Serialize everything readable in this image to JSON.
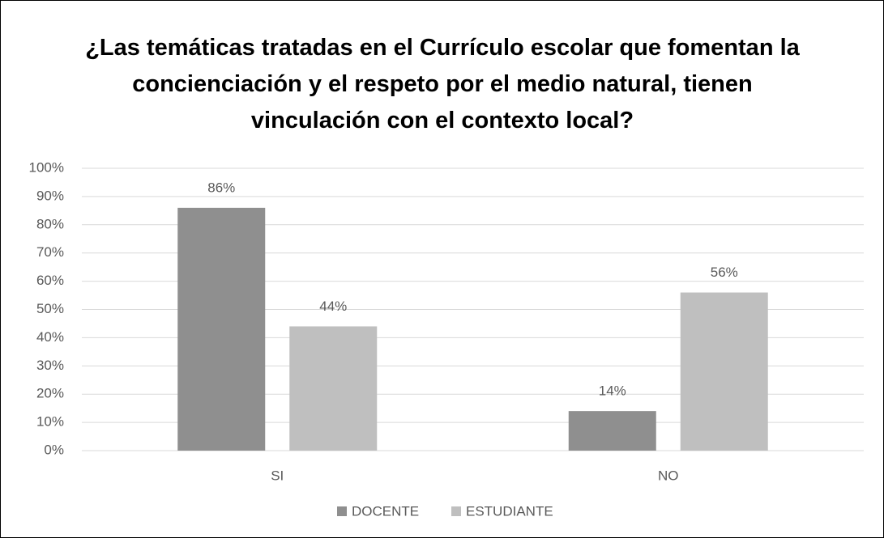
{
  "chart_data": {
    "type": "bar",
    "title": "¿Las temáticas tratadas en el Currículo escolar que fomentan la concienciación y el respeto por el medio natural, tienen vinculación con el contexto local?",
    "categories": [
      "SI",
      "NO"
    ],
    "series": [
      {
        "name": "DOCENTE",
        "color": "#8f8f8f",
        "values": [
          86,
          14
        ],
        "value_labels": [
          "86%",
          "14%"
        ]
      },
      {
        "name": "ESTUDIANTE",
        "color": "#bfbfbf",
        "values": [
          44,
          56
        ],
        "value_labels": [
          "44%",
          "56%"
        ]
      }
    ],
    "ylim": [
      0,
      100
    ],
    "yticks": [
      {
        "value": 0,
        "label": "0%"
      },
      {
        "value": 10,
        "label": "10%"
      },
      {
        "value": 20,
        "label": "20%"
      },
      {
        "value": 30,
        "label": "30%"
      },
      {
        "value": 40,
        "label": "40%"
      },
      {
        "value": 50,
        "label": "50%"
      },
      {
        "value": 60,
        "label": "60%"
      },
      {
        "value": 70,
        "label": "70%"
      },
      {
        "value": 80,
        "label": "80%"
      },
      {
        "value": 90,
        "label": "90%"
      },
      {
        "value": 100,
        "label": "100%"
      }
    ],
    "grid": true,
    "legend": "bottom"
  }
}
